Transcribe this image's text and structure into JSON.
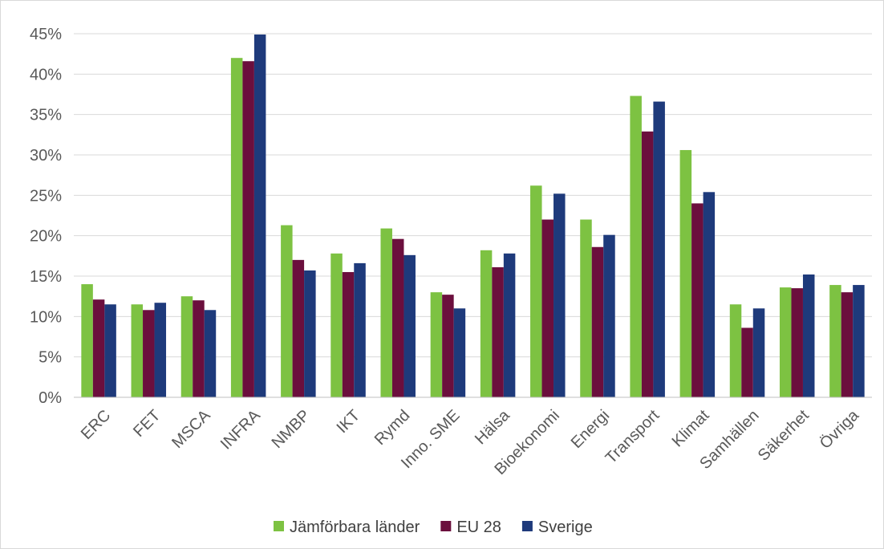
{
  "chart_data": {
    "type": "bar",
    "title": "",
    "xlabel": "",
    "ylabel": "",
    "categories": [
      "ERC",
      "FET",
      "MSCA",
      "INFRA",
      "NMBP",
      "IKT",
      "Rymd",
      "Inno. SME",
      "Hälsa",
      "Bioekonomi",
      "Energi",
      "Transport",
      "Klimat",
      "Samhällen",
      "Säkerhet",
      "Övriga"
    ],
    "series": [
      {
        "name": "Jämförbara länder",
        "color": "#7dc242",
        "values": [
          14.0,
          11.5,
          12.5,
          42.0,
          21.3,
          17.8,
          20.9,
          13.0,
          18.2,
          26.2,
          22.0,
          37.3,
          30.6,
          11.5,
          13.6,
          13.9
        ]
      },
      {
        "name": "EU 28",
        "color": "#6b0f3d",
        "values": [
          12.1,
          10.8,
          12.0,
          41.6,
          17.0,
          15.5,
          19.6,
          12.7,
          16.1,
          22.0,
          18.6,
          32.9,
          24.0,
          8.6,
          13.5,
          13.0
        ]
      },
      {
        "name": "Sverige",
        "color": "#1e3a7b",
        "values": [
          11.5,
          11.7,
          10.8,
          44.9,
          15.7,
          16.6,
          17.6,
          11.0,
          17.8,
          25.2,
          20.1,
          36.6,
          25.4,
          11.0,
          15.2,
          13.9
        ]
      }
    ],
    "ylim": [
      0,
      45
    ],
    "yticks": [
      0,
      5,
      10,
      15,
      20,
      25,
      30,
      35,
      40,
      45
    ],
    "ytick_labels": [
      "0%",
      "5%",
      "10%",
      "15%",
      "20%",
      "25%",
      "30%",
      "35%",
      "40%",
      "45%"
    ],
    "grid": true,
    "legend_position": "bottom"
  }
}
